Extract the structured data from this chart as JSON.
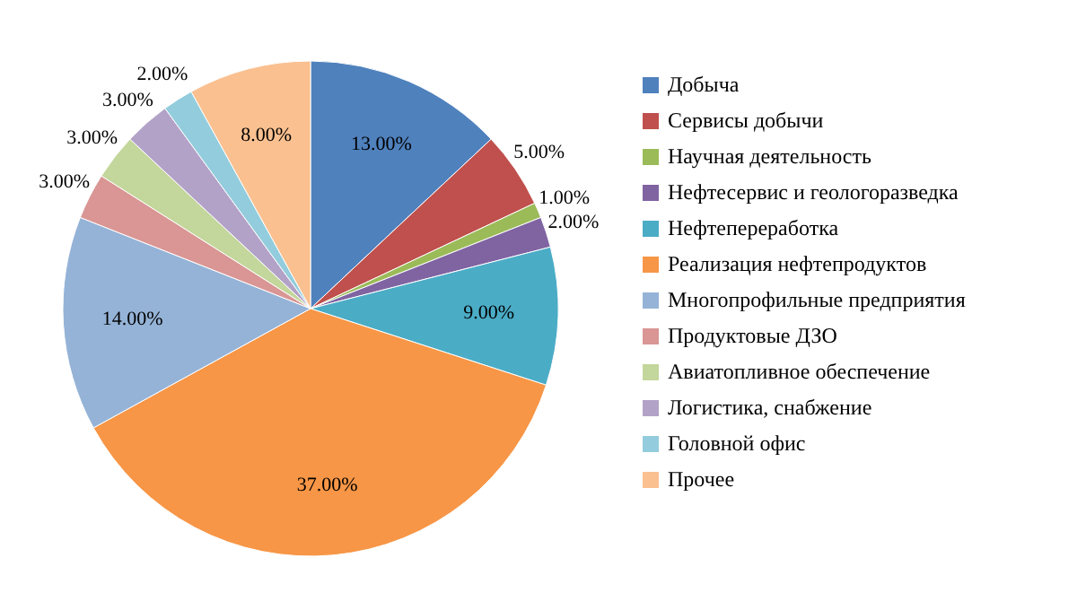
{
  "chart_data": {
    "type": "pie",
    "categories": [
      "Добыча",
      "Сервисы добычи",
      "Научная деятельность",
      "Нефтесервис и геологоразведка",
      "Нефтепереработка",
      "Реализация нефтепродуктов",
      "Многопрофильные предприятия",
      "Продуктовые ДЗО",
      "Авиатопливное обеспечение",
      "Логистика, снабжение",
      "Головной офис",
      "Прочее"
    ],
    "values": [
      13,
      5,
      1,
      2,
      9,
      37,
      14,
      3,
      3,
      3,
      2,
      8
    ],
    "value_labels": [
      "13.00%",
      "5.00%",
      "1.00%",
      "2.00%",
      "9.00%",
      "37.00%",
      "14.00%",
      "3.00%",
      "3.00%",
      "3.00%",
      "2.00%",
      "8.00%"
    ],
    "colors": [
      "#4f81bd",
      "#c0504d",
      "#9bbb59",
      "#8064a2",
      "#4bacc6",
      "#f79646",
      "#95b3d7",
      "#d99694",
      "#c3d69b",
      "#b3a2c7",
      "#93cddd",
      "#fac090"
    ],
    "legend": "right"
  }
}
